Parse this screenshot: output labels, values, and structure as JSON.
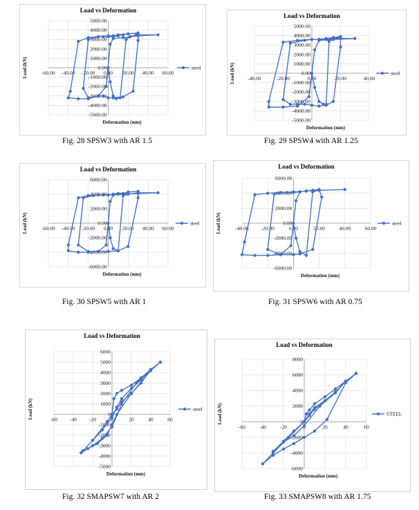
{
  "series_color": "#4472c4",
  "chart_data": [
    {
      "type": "line",
      "title": "Load vs Deformation",
      "xlabel": "Deformation (mm)",
      "ylabel": "Load (kN)",
      "xlim": [
        -60,
        60
      ],
      "ylim": [
        -5000,
        5000
      ],
      "xticks": [
        "-60.00",
        "-40.00",
        "-20.00",
        "0.00",
        "20.00",
        "40.00",
        "60.00"
      ],
      "yticks": [
        "-5000.00",
        "-4000.00",
        "-3000.00",
        "-2000.00",
        "-1000.00",
        "0.00",
        "1000.00",
        "2000.00",
        "3000.00",
        "4000.00",
        "5000.00"
      ],
      "grid": true,
      "legend_position": "right",
      "series": [
        {
          "name": "steel",
          "x": [
            0,
            2,
            5,
            8,
            12,
            18,
            22,
            28,
            30,
            50,
            30,
            15,
            5,
            2,
            -2,
            -10,
            -20,
            -30,
            -40,
            -38,
            -30,
            -20,
            -10,
            -5,
            0,
            5,
            10,
            15,
            20,
            30,
            30,
            25,
            15,
            5,
            0,
            -5,
            -10,
            -20,
            -25,
            -20,
            -10,
            0,
            5,
            10,
            20
          ],
          "y": [
            0,
            -1500,
            -3000,
            -3300,
            -3200,
            3000,
            3300,
            3500,
            3500,
            3500,
            3400,
            3200,
            3100,
            2500,
            -2000,
            -3000,
            -3300,
            -3300,
            -3200,
            -2500,
            2800,
            3200,
            3300,
            3300,
            3300,
            3300,
            3400,
            3500,
            3600,
            3700,
            2900,
            -2500,
            -3100,
            -3200,
            -3200,
            -3000,
            -3000,
            -3200,
            -2200,
            3000,
            3300,
            3400,
            3400,
            3500,
            3600
          ]
        }
      ]
    },
    {
      "type": "line",
      "title": "Load vs Deformation",
      "xlabel": "Deformation (mm)",
      "ylabel": "Load (kN)",
      "xlim": [
        -40,
        40
      ],
      "ylim": [
        -5000,
        5000
      ],
      "xticks": [
        "-40.00",
        "-20.00",
        "0.00",
        "20.00",
        "40.00"
      ],
      "yticks": [
        "-5000.00",
        "-4000.00",
        "-3000.00",
        "-2000.00",
        "-1000.00",
        "0.00",
        "1000.00",
        "2000.00",
        "3000.00",
        "4000.00",
        "5000.00"
      ],
      "grid": true,
      "legend_position": "right",
      "series": [
        {
          "name": "steel",
          "x": [
            0,
            2,
            5,
            8,
            10,
            12,
            15,
            20,
            30,
            15,
            5,
            2,
            -2,
            -10,
            -20,
            -30,
            -30,
            -20,
            -10,
            0,
            5,
            10,
            15,
            20,
            20,
            15,
            10,
            5,
            0,
            -5,
            -10,
            -15,
            -20,
            -15,
            -5,
            0,
            5,
            10,
            15,
            20
          ],
          "y": [
            0,
            -1500,
            -3000,
            -3300,
            -3300,
            3400,
            3600,
            3700,
            3700,
            3600,
            3500,
            2500,
            -2500,
            -3500,
            -3600,
            -3600,
            -3000,
            3300,
            3500,
            3600,
            3600,
            3600,
            3700,
            3800,
            2800,
            -3000,
            -3400,
            -3500,
            -3400,
            -3300,
            -3300,
            -3300,
            -2800,
            3200,
            3500,
            3600,
            3600,
            3700,
            3800,
            3900
          ]
        }
      ]
    },
    {
      "type": "line",
      "title": "Load vs Deformation",
      "xlabel": "Deformation (mm)",
      "ylabel": "Load (kN)",
      "xlim": [
        -60,
        60
      ],
      "ylim": [
        -6000,
        6000
      ],
      "xticks": [
        "-60.00",
        "-40.00",
        "-20.00",
        "0.00",
        "20.00",
        "40.00",
        "60.00"
      ],
      "yticks": [
        "-6000.00",
        "-4000.00",
        "-2000.00",
        "0.00",
        "2000.00",
        "4000.00",
        "6000.00"
      ],
      "grid": true,
      "legend_position": "right",
      "series": [
        {
          "name": "steel",
          "x": [
            0,
            2,
            5,
            10,
            15,
            20,
            30,
            50,
            30,
            15,
            5,
            2,
            -2,
            -10,
            -20,
            -30,
            -40,
            -40,
            -30,
            -20,
            -10,
            -5,
            0,
            5,
            10,
            15,
            20,
            30,
            30,
            20,
            10,
            0,
            -10,
            -20,
            -30,
            -25,
            -15,
            -5,
            0,
            5,
            10,
            20
          ],
          "y": [
            0,
            -2000,
            -3500,
            -3800,
            3800,
            4000,
            4200,
            4200,
            4100,
            4000,
            3900,
            3000,
            -3000,
            -3900,
            -4000,
            -4000,
            -3800,
            -3000,
            3500,
            3800,
            3900,
            3900,
            3900,
            3900,
            4000,
            4100,
            4300,
            4400,
            3500,
            -3200,
            -3800,
            -3900,
            -3900,
            -3900,
            -3000,
            3500,
            3800,
            3900,
            3900,
            4000,
            4100,
            4200
          ]
        }
      ]
    },
    {
      "type": "line",
      "title": "Load vs Deformation",
      "xlabel": "Deformation (mm)",
      "ylabel": "Load (kN)",
      "xlim": [
        -40,
        60
      ],
      "ylim": [
        -6000,
        6000
      ],
      "xticks": [
        "-40.00",
        "-20.00",
        "0.00",
        "20.00",
        "40.00",
        "60.00"
      ],
      "yticks": [
        "-6000.00",
        "-4000.00",
        "-2000.00",
        "0.00",
        "2000.00",
        "4000.00",
        "6000.00"
      ],
      "grid": true,
      "legend_position": "right",
      "series": [
        {
          "name": "steel",
          "x": [
            0,
            2,
            5,
            10,
            15,
            20,
            40,
            20,
            10,
            5,
            2,
            -2,
            -10,
            -20,
            -30,
            -40,
            -38,
            -30,
            -20,
            -10,
            0,
            5,
            10,
            15,
            20,
            22,
            15,
            5,
            0,
            -10,
            -20,
            -15,
            -5,
            0,
            5,
            10,
            20
          ],
          "y": [
            0,
            -2000,
            -3800,
            -4300,
            4200,
            4400,
            4500,
            4400,
            4300,
            4200,
            3000,
            -3000,
            -4200,
            -4300,
            -4300,
            -4200,
            -2500,
            3800,
            4000,
            4100,
            4100,
            4200,
            4300,
            4400,
            4500,
            3500,
            -3500,
            -4100,
            -4200,
            -4200,
            -3500,
            3900,
            4100,
            4200,
            4200,
            4300,
            4400
          ]
        }
      ]
    },
    {
      "type": "line",
      "title": "Load vs Deformation",
      "xlabel": "Deformation (mm)",
      "ylabel": "Load (kN)",
      "xlim": [
        -60,
        60
      ],
      "ylim": [
        -5000,
        6000
      ],
      "xticks": [
        "-60",
        "-40",
        "-20",
        "0",
        "20",
        "40",
        "60"
      ],
      "yticks": [
        "-5000",
        "-4000",
        "-3000",
        "-2000",
        "-1000",
        "0",
        "1000",
        "2000",
        "3000",
        "4000",
        "5000",
        "6000"
      ],
      "grid": true,
      "legend_position": "right",
      "series": [
        {
          "name": "steel",
          "x": [
            0,
            2,
            5,
            10,
            20,
            30,
            40,
            50,
            40,
            20,
            5,
            0,
            -5,
            -15,
            -25,
            -30,
            -20,
            -10,
            0,
            5,
            10,
            20,
            30,
            40,
            25,
            10,
            0,
            -10,
            -20,
            -32,
            -20,
            -5,
            0,
            5,
            10,
            20,
            30,
            40,
            50
          ],
          "y": [
            0,
            1500,
            2000,
            2300,
            2800,
            3500,
            4300,
            5000,
            4200,
            2000,
            0,
            -1000,
            -2000,
            -2800,
            -3300,
            -3500,
            -2500,
            -1500,
            -300,
            700,
            1500,
            2500,
            3300,
            4300,
            3000,
            1000,
            -1200,
            -2300,
            -3000,
            -3700,
            -2500,
            -700,
            0,
            500,
            1200,
            2000,
            3000,
            4300,
            5000
          ]
        }
      ]
    },
    {
      "type": "line",
      "title": "Load vs Deformation",
      "xlabel": "Deformation (mm)",
      "ylabel": "Load (kN)",
      "xlim": [
        -60,
        60
      ],
      "ylim": [
        -6000,
        8000
      ],
      "xticks": [
        "-60",
        "-40",
        "-20",
        "0",
        "20",
        "40",
        "60"
      ],
      "yticks": [
        "-6000",
        "-4000",
        "-2000",
        "0",
        "2000",
        "4000",
        "6000",
        "8000"
      ],
      "grid": true,
      "legend_position": "right",
      "series": [
        {
          "name": "STEEL",
          "x": [
            0,
            2,
            5,
            10,
            20,
            30,
            40,
            50,
            40,
            22,
            10,
            0,
            -10,
            -20,
            -30,
            -40,
            -30,
            -15,
            0,
            5,
            10,
            20,
            30,
            40,
            30,
            15,
            0,
            -10,
            -20,
            -30,
            -20,
            -10,
            0,
            5,
            10,
            20,
            30,
            40,
            50
          ],
          "y": [
            0,
            1000,
            1500,
            2300,
            3200,
            4200,
            5200,
            6200,
            5000,
            300,
            -1200,
            -2000,
            -2800,
            -3500,
            -4300,
            -5400,
            -4000,
            -2000,
            0,
            1000,
            1800,
            2700,
            3800,
            5200,
            3700,
            2000,
            -500,
            -1800,
            -2600,
            -3800,
            -2500,
            -1200,
            0,
            800,
            1600,
            2700,
            3800,
            5200,
            6200
          ]
        }
      ]
    }
  ],
  "captions": [
    "Fig. 28 SPSW3 with AR 1.5",
    "Fig. 29 SPSW4 with AR 1.25",
    "Fig. 30 SPSW5 with AR 1",
    "Fig. 31 SPSW6 with AR 0.75",
    "Fig. 32 SMAPSW7 with AR 2",
    "Fig. 33 SMAPSW8 with AR 1.75"
  ]
}
